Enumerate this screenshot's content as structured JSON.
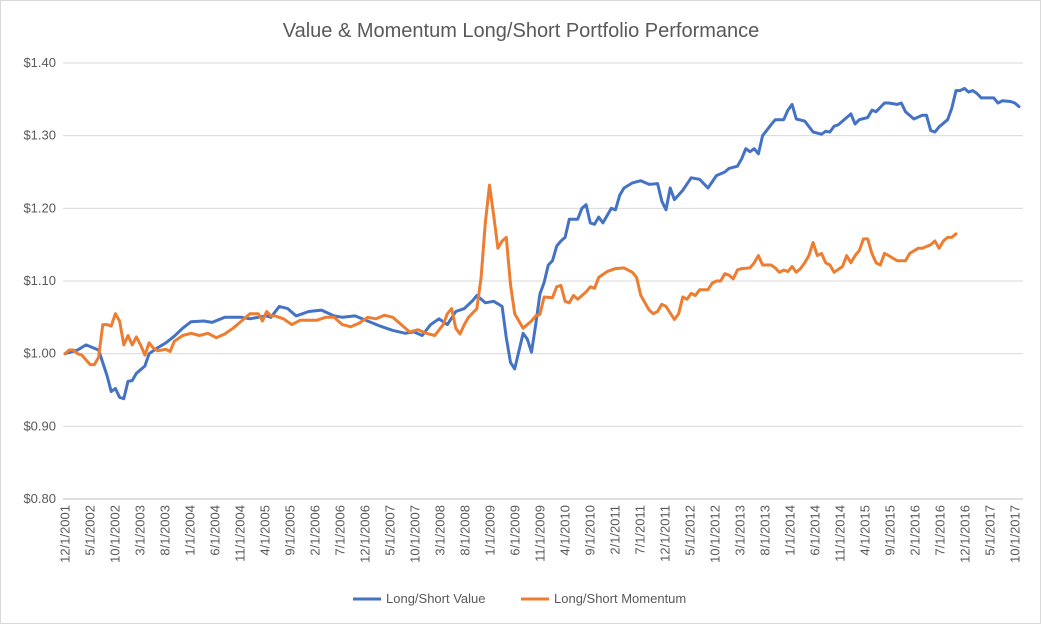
{
  "chart_data": {
    "type": "line",
    "title": "Value & Momentum Long/Short Portfolio Performance",
    "xlabel": "",
    "ylabel": "",
    "ylim": [
      0.8,
      1.4
    ],
    "y_ticks": [
      1.4,
      1.3,
      1.2,
      1.1,
      1.0,
      0.9,
      0.8
    ],
    "y_tick_labels": [
      "$1.40",
      "$1.30",
      "$1.20",
      "$1.10",
      "$1.00",
      "$0.90",
      "$0.80"
    ],
    "x_tick_labels": [
      "12/1/2001",
      "5/1/2002",
      "10/1/2002",
      "3/1/2003",
      "8/1/2003",
      "1/1/2004",
      "6/1/2004",
      "11/1/2004",
      "4/1/2005",
      "9/1/2005",
      "2/1/2006",
      "7/1/2006",
      "12/1/2006",
      "5/1/2007",
      "10/1/2007",
      "3/1/2008",
      "8/1/2008",
      "1/1/2009",
      "6/1/2009",
      "11/1/2009",
      "4/1/2010",
      "9/1/2010",
      "2/1/2011",
      "7/1/2011",
      "12/1/2011",
      "5/1/2012",
      "10/1/2012",
      "3/1/2013",
      "8/1/2013",
      "1/1/2014",
      "6/1/2014",
      "11/1/2014",
      "4/1/2015",
      "9/1/2015",
      "2/1/2016",
      "7/1/2016",
      "12/1/2016",
      "5/1/2017",
      "10/1/2017"
    ],
    "grid": true,
    "legend_position": "bottom",
    "x_start": "2001-12",
    "x_end": "2017-12",
    "series": [
      {
        "name": "Long/Short Value",
        "color": "#4472C4",
        "anchors": [
          [
            0,
            1.0
          ],
          [
            3,
            1.005
          ],
          [
            5,
            1.012
          ],
          [
            8,
            1.005
          ],
          [
            10,
            0.97
          ],
          [
            11,
            0.948
          ],
          [
            12,
            0.952
          ],
          [
            13,
            0.94
          ],
          [
            14,
            0.938
          ],
          [
            15,
            0.962
          ],
          [
            16,
            0.963
          ],
          [
            17,
            0.973
          ],
          [
            19,
            0.983
          ],
          [
            20,
            1.0
          ],
          [
            22,
            1.008
          ],
          [
            24,
            1.015
          ],
          [
            26,
            1.024
          ],
          [
            28,
            1.035
          ],
          [
            30,
            1.044
          ],
          [
            33,
            1.045
          ],
          [
            35,
            1.043
          ],
          [
            38,
            1.05
          ],
          [
            42,
            1.05
          ],
          [
            44,
            1.048
          ],
          [
            46,
            1.05
          ],
          [
            48,
            1.052
          ],
          [
            49,
            1.05
          ],
          [
            51,
            1.065
          ],
          [
            53,
            1.062
          ],
          [
            55,
            1.052
          ],
          [
            58,
            1.058
          ],
          [
            61,
            1.06
          ],
          [
            64,
            1.052
          ],
          [
            66,
            1.05
          ],
          [
            69,
            1.052
          ],
          [
            72,
            1.045
          ],
          [
            75,
            1.038
          ],
          [
            78,
            1.032
          ],
          [
            81,
            1.028
          ],
          [
            83,
            1.03
          ],
          [
            85,
            1.025
          ],
          [
            87,
            1.04
          ],
          [
            89,
            1.048
          ],
          [
            91,
            1.04
          ],
          [
            93,
            1.058
          ],
          [
            95,
            1.062
          ],
          [
            97,
            1.073
          ],
          [
            98,
            1.08
          ],
          [
            100,
            1.07
          ],
          [
            102,
            1.072
          ],
          [
            104,
            1.065
          ],
          [
            105,
            1.022
          ],
          [
            106,
            0.988
          ],
          [
            107,
            0.979
          ],
          [
            109,
            1.028
          ],
          [
            110,
            1.02
          ],
          [
            111,
            1.002
          ],
          [
            112,
            1.04
          ],
          [
            113,
            1.082
          ],
          [
            114,
            1.098
          ],
          [
            115,
            1.122
          ],
          [
            116,
            1.128
          ],
          [
            117,
            1.148
          ],
          [
            118,
            1.155
          ],
          [
            119,
            1.16
          ],
          [
            120,
            1.185
          ],
          [
            122,
            1.185
          ],
          [
            123,
            1.2
          ],
          [
            124,
            1.205
          ],
          [
            125,
            1.18
          ],
          [
            126,
            1.178
          ],
          [
            127,
            1.188
          ],
          [
            128,
            1.18
          ],
          [
            129,
            1.19
          ],
          [
            130,
            1.2
          ],
          [
            131,
            1.198
          ],
          [
            132,
            1.218
          ],
          [
            133,
            1.228
          ],
          [
            135,
            1.235
          ],
          [
            137,
            1.238
          ],
          [
            139,
            1.233
          ],
          [
            141,
            1.234
          ],
          [
            142,
            1.21
          ],
          [
            143,
            1.198
          ],
          [
            144,
            1.228
          ],
          [
            145,
            1.212
          ],
          [
            147,
            1.225
          ],
          [
            149,
            1.242
          ],
          [
            151,
            1.24
          ],
          [
            153,
            1.228
          ],
          [
            155,
            1.245
          ],
          [
            157,
            1.25
          ],
          [
            158,
            1.255
          ],
          [
            160,
            1.258
          ],
          [
            161,
            1.268
          ],
          [
            162,
            1.282
          ],
          [
            163,
            1.278
          ],
          [
            164,
            1.282
          ],
          [
            165,
            1.275
          ],
          [
            166,
            1.3
          ],
          [
            168,
            1.315
          ],
          [
            169,
            1.322
          ],
          [
            171,
            1.322
          ],
          [
            172,
            1.335
          ],
          [
            173,
            1.343
          ],
          [
            174,
            1.323
          ],
          [
            176,
            1.32
          ],
          [
            178,
            1.305
          ],
          [
            180,
            1.302
          ],
          [
            181,
            1.306
          ],
          [
            182,
            1.305
          ],
          [
            183,
            1.313
          ],
          [
            184,
            1.315
          ],
          [
            186,
            1.325
          ],
          [
            187,
            1.33
          ],
          [
            188,
            1.316
          ],
          [
            189,
            1.322
          ],
          [
            191,
            1.325
          ],
          [
            192,
            1.335
          ],
          [
            193,
            1.333
          ],
          [
            195,
            1.345
          ],
          [
            196,
            1.345
          ],
          [
            198,
            1.343
          ],
          [
            199,
            1.345
          ],
          [
            200,
            1.333
          ],
          [
            202,
            1.323
          ],
          [
            204,
            1.328
          ],
          [
            205,
            1.328
          ],
          [
            206,
            1.307
          ],
          [
            207,
            1.305
          ],
          [
            208,
            1.312
          ],
          [
            210,
            1.322
          ],
          [
            211,
            1.338
          ],
          [
            212,
            1.362
          ],
          [
            213,
            1.362
          ],
          [
            214,
            1.365
          ],
          [
            215,
            1.36
          ],
          [
            216,
            1.362
          ],
          [
            217,
            1.358
          ],
          [
            218,
            1.352
          ],
          [
            221,
            1.352
          ],
          [
            222,
            1.345
          ],
          [
            223,
            1.348
          ],
          [
            225,
            1.347
          ],
          [
            226,
            1.345
          ],
          [
            227,
            1.34
          ]
        ]
      },
      {
        "name": "Long/Short Momentum",
        "color": "#ED7D31",
        "anchors": [
          [
            0,
            1.0
          ],
          [
            1,
            1.005
          ],
          [
            2,
            1.005
          ],
          [
            3,
            1.0
          ],
          [
            4,
            0.998
          ],
          [
            6,
            0.985
          ],
          [
            7,
            0.985
          ],
          [
            8,
            0.995
          ],
          [
            9,
            1.04
          ],
          [
            10,
            1.04
          ],
          [
            11,
            1.038
          ],
          [
            12,
            1.055
          ],
          [
            13,
            1.045
          ],
          [
            14,
            1.012
          ],
          [
            15,
            1.025
          ],
          [
            16,
            1.012
          ],
          [
            17,
            1.023
          ],
          [
            18,
            1.012
          ],
          [
            19,
            0.998
          ],
          [
            20,
            1.015
          ],
          [
            21,
            1.008
          ],
          [
            22,
            1.004
          ],
          [
            24,
            1.006
          ],
          [
            25,
            1.003
          ],
          [
            26,
            1.017
          ],
          [
            28,
            1.025
          ],
          [
            30,
            1.028
          ],
          [
            32,
            1.025
          ],
          [
            34,
            1.028
          ],
          [
            36,
            1.022
          ],
          [
            38,
            1.027
          ],
          [
            40,
            1.035
          ],
          [
            42,
            1.045
          ],
          [
            44,
            1.055
          ],
          [
            46,
            1.055
          ],
          [
            47,
            1.045
          ],
          [
            48,
            1.058
          ],
          [
            49,
            1.052
          ],
          [
            50,
            1.052
          ],
          [
            52,
            1.048
          ],
          [
            54,
            1.04
          ],
          [
            56,
            1.046
          ],
          [
            60,
            1.046
          ],
          [
            62,
            1.05
          ],
          [
            64,
            1.05
          ],
          [
            66,
            1.04
          ],
          [
            68,
            1.037
          ],
          [
            70,
            1.042
          ],
          [
            72,
            1.05
          ],
          [
            74,
            1.048
          ],
          [
            76,
            1.053
          ],
          [
            78,
            1.05
          ],
          [
            80,
            1.04
          ],
          [
            82,
            1.03
          ],
          [
            84,
            1.033
          ],
          [
            86,
            1.028
          ],
          [
            88,
            1.025
          ],
          [
            90,
            1.04
          ],
          [
            91,
            1.055
          ],
          [
            92,
            1.062
          ],
          [
            93,
            1.035
          ],
          [
            94,
            1.027
          ],
          [
            95,
            1.04
          ],
          [
            96,
            1.05
          ],
          [
            98,
            1.062
          ],
          [
            99,
            1.105
          ],
          [
            100,
            1.18
          ],
          [
            101,
            1.232
          ],
          [
            102,
            1.19
          ],
          [
            103,
            1.145
          ],
          [
            104,
            1.155
          ],
          [
            105,
            1.16
          ],
          [
            106,
            1.095
          ],
          [
            107,
            1.055
          ],
          [
            108,
            1.045
          ],
          [
            109,
            1.035
          ],
          [
            111,
            1.045
          ],
          [
            112,
            1.052
          ],
          [
            113,
            1.054
          ],
          [
            114,
            1.078
          ],
          [
            116,
            1.077
          ],
          [
            117,
            1.092
          ],
          [
            118,
            1.094
          ],
          [
            119,
            1.072
          ],
          [
            120,
            1.07
          ],
          [
            121,
            1.08
          ],
          [
            122,
            1.075
          ],
          [
            124,
            1.085
          ],
          [
            125,
            1.092
          ],
          [
            126,
            1.09
          ],
          [
            127,
            1.105
          ],
          [
            129,
            1.113
          ],
          [
            131,
            1.117
          ],
          [
            133,
            1.118
          ],
          [
            135,
            1.112
          ],
          [
            136,
            1.105
          ],
          [
            137,
            1.08
          ],
          [
            139,
            1.06
          ],
          [
            140,
            1.055
          ],
          [
            141,
            1.058
          ],
          [
            142,
            1.068
          ],
          [
            143,
            1.065
          ],
          [
            145,
            1.047
          ],
          [
            146,
            1.055
          ],
          [
            147,
            1.078
          ],
          [
            148,
            1.075
          ],
          [
            149,
            1.083
          ],
          [
            150,
            1.08
          ],
          [
            151,
            1.088
          ],
          [
            153,
            1.088
          ],
          [
            154,
            1.097
          ],
          [
            155,
            1.1
          ],
          [
            156,
            1.1
          ],
          [
            157,
            1.11
          ],
          [
            158,
            1.108
          ],
          [
            159,
            1.103
          ],
          [
            160,
            1.115
          ],
          [
            161,
            1.117
          ],
          [
            163,
            1.118
          ],
          [
            164,
            1.125
          ],
          [
            165,
            1.135
          ],
          [
            166,
            1.122
          ],
          [
            168,
            1.122
          ],
          [
            169,
            1.118
          ],
          [
            170,
            1.112
          ],
          [
            171,
            1.115
          ],
          [
            172,
            1.113
          ],
          [
            173,
            1.12
          ],
          [
            174,
            1.112
          ],
          [
            175,
            1.117
          ],
          [
            176,
            1.125
          ],
          [
            177,
            1.135
          ],
          [
            178,
            1.153
          ],
          [
            179,
            1.135
          ],
          [
            180,
            1.138
          ],
          [
            181,
            1.125
          ],
          [
            182,
            1.122
          ],
          [
            183,
            1.112
          ],
          [
            185,
            1.12
          ],
          [
            186,
            1.135
          ],
          [
            187,
            1.125
          ],
          [
            188,
            1.135
          ],
          [
            189,
            1.142
          ],
          [
            190,
            1.158
          ],
          [
            191,
            1.158
          ],
          [
            192,
            1.138
          ],
          [
            193,
            1.125
          ],
          [
            194,
            1.122
          ],
          [
            195,
            1.138
          ],
          [
            196,
            1.135
          ],
          [
            198,
            1.128
          ],
          [
            200,
            1.128
          ],
          [
            201,
            1.138
          ],
          [
            203,
            1.145
          ],
          [
            204,
            1.145
          ],
          [
            206,
            1.15
          ],
          [
            207,
            1.155
          ],
          [
            208,
            1.145
          ],
          [
            209,
            1.155
          ],
          [
            210,
            1.16
          ],
          [
            211,
            1.16
          ],
          [
            212,
            1.165
          ]
        ]
      }
    ]
  }
}
